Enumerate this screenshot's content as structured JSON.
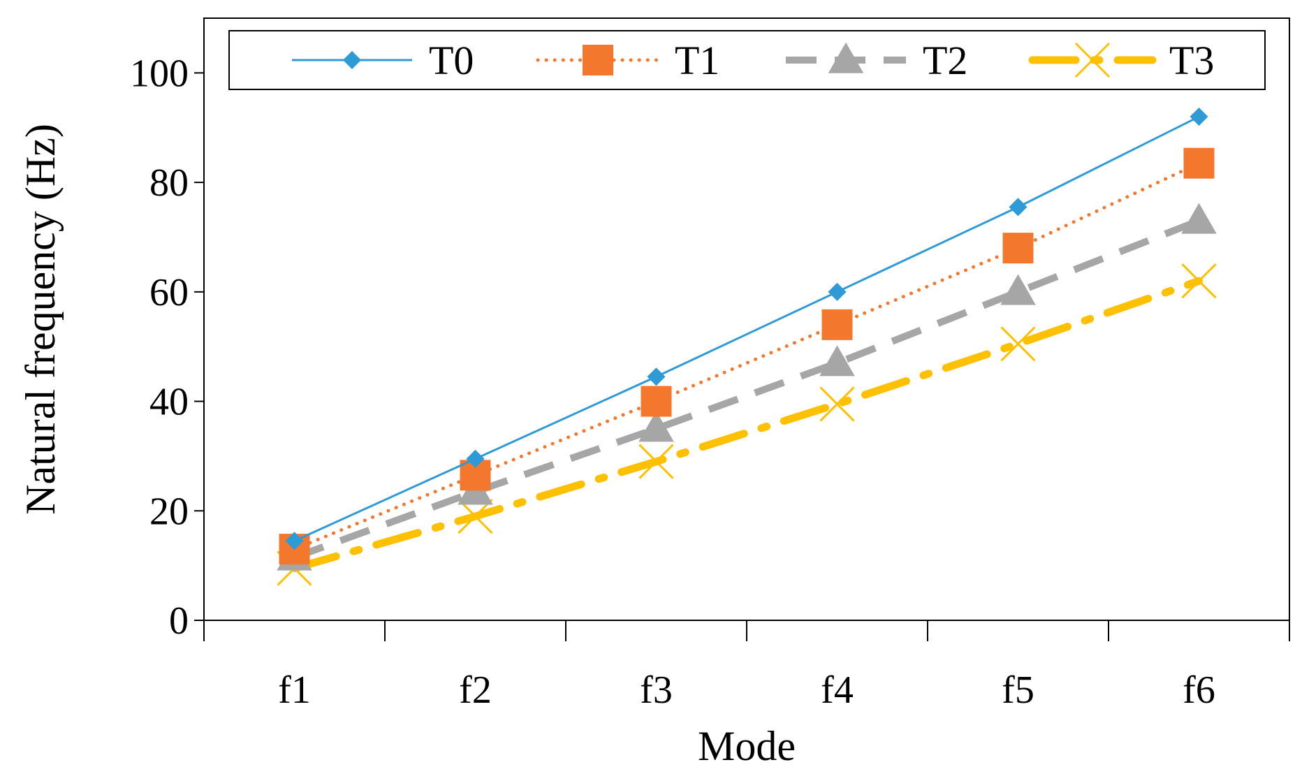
{
  "chart_data": {
    "type": "line",
    "title": "",
    "xlabel": "Mode",
    "ylabel": "Natural frequency (Hz)",
    "categories": [
      "f1",
      "f2",
      "f3",
      "f4",
      "f5",
      "f6"
    ],
    "ylim": [
      0,
      110
    ],
    "yticks": [
      0,
      20,
      40,
      60,
      80,
      100
    ],
    "grid": false,
    "legend_position": "top",
    "series": [
      {
        "name": "T0",
        "color": "#2E9BD6",
        "marker": "diamond",
        "line_style": "solid",
        "values": [
          14.5,
          29.5,
          44.5,
          60,
          75.5,
          92
        ]
      },
      {
        "name": "T1",
        "color": "#F4772E",
        "marker": "square",
        "line_style": "dotted",
        "values": [
          13,
          26.5,
          40,
          54,
          68,
          83.5
        ]
      },
      {
        "name": "T2",
        "color": "#A6A6A6",
        "marker": "triangle",
        "line_style": "dashed",
        "values": [
          11.5,
          23.5,
          35,
          47,
          60,
          73
        ]
      },
      {
        "name": "T3",
        "color": "#FFC000",
        "marker": "x",
        "line_style": "dashdot",
        "values": [
          9.5,
          19,
          29,
          39.5,
          50.5,
          62
        ]
      }
    ]
  }
}
